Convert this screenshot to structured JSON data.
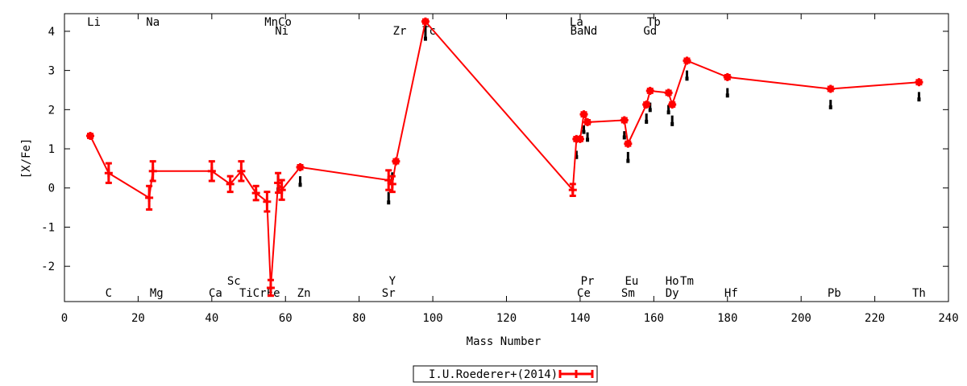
{
  "chart_data": {
    "type": "scatter",
    "xlabel": "Mass Number",
    "ylabel": "[X/Fe]",
    "xlim": [
      0,
      240
    ],
    "ylim": [
      -2.9,
      4.45
    ],
    "x_ticks": [
      0,
      20,
      40,
      60,
      80,
      100,
      120,
      140,
      160,
      180,
      200,
      220,
      240
    ],
    "y_ticks": [
      -2,
      -1,
      0,
      1,
      2,
      3,
      4
    ],
    "grid": false,
    "legend_position": "bottom-center",
    "colors": {
      "series": "#ff0000",
      "limits": "#000000"
    },
    "series": [
      {
        "name": "I.U.Roederer+(2014)",
        "points": [
          {
            "x": 7,
            "y": 1.33,
            "err": 0.05
          },
          {
            "x": 12,
            "y": 0.38,
            "err": 0.25
          },
          {
            "x": 23,
            "y": -0.25,
            "err": 0.3
          },
          {
            "x": 24,
            "y": 0.43,
            "err": 0.25
          },
          {
            "x": 40,
            "y": 0.43,
            "err": 0.25
          },
          {
            "x": 45,
            "y": 0.1,
            "err": 0.2
          },
          {
            "x": 48,
            "y": 0.43,
            "err": 0.25
          },
          {
            "x": 52,
            "y": -0.13,
            "err": 0.18
          },
          {
            "x": 55,
            "y": -0.35,
            "err": 0.25
          },
          {
            "x": 56,
            "y": -2.55,
            "err": 0.2
          },
          {
            "x": 58,
            "y": 0.13,
            "err": 0.25
          },
          {
            "x": 59,
            "y": -0.05,
            "err": 0.25
          },
          {
            "x": 64,
            "y": 0.53,
            "err": 0.05
          },
          {
            "x": 88,
            "y": 0.2,
            "err": 0.25
          },
          {
            "x": 89,
            "y": 0.1,
            "err": 0.2
          },
          {
            "x": 90,
            "y": 0.68,
            "err": 0.05
          },
          {
            "x": 98,
            "y": 4.25,
            "err": 0.05
          },
          {
            "x": 138,
            "y": -0.05,
            "err": 0.15
          },
          {
            "x": 139,
            "y": 1.25,
            "err": 0.05
          },
          {
            "x": 140,
            "y": 1.25,
            "err": 0.05
          },
          {
            "x": 141,
            "y": 1.88,
            "err": 0.05
          },
          {
            "x": 142,
            "y": 1.68,
            "err": 0.05
          },
          {
            "x": 152,
            "y": 1.73,
            "err": 0.05
          },
          {
            "x": 153,
            "y": 1.13,
            "err": 0.05
          },
          {
            "x": 158,
            "y": 2.13,
            "err": 0.05
          },
          {
            "x": 159,
            "y": 2.48,
            "err": 0.05
          },
          {
            "x": 164,
            "y": 2.43,
            "err": 0.05
          },
          {
            "x": 165,
            "y": 2.13,
            "err": 0.05
          },
          {
            "x": 169,
            "y": 3.25,
            "err": 0.05
          },
          {
            "x": 180,
            "y": 2.83,
            "err": 0.05
          },
          {
            "x": 208,
            "y": 2.53,
            "err": 0.05
          },
          {
            "x": 232,
            "y": 2.7,
            "err": 0.05
          }
        ]
      }
    ],
    "upper_limit_markers": [
      {
        "x": 58,
        "y_top": 0.33,
        "y_bottom": -0.05
      },
      {
        "x": 64,
        "y_top": 0.3,
        "y_bottom": 0.07
      },
      {
        "x": 88,
        "y_top": -0.1,
        "y_bottom": -0.38
      },
      {
        "x": 89,
        "y_top": 0.4,
        "y_bottom": 0.25
      },
      {
        "x": 98,
        "y_top": 4.15,
        "y_bottom": 3.8
      },
      {
        "x": 139,
        "y_top": 0.95,
        "y_bottom": 0.78
      },
      {
        "x": 141,
        "y_top": 1.6,
        "y_bottom": 1.42
      },
      {
        "x": 142,
        "y_top": 1.42,
        "y_bottom": 1.22
      },
      {
        "x": 152,
        "y_top": 1.45,
        "y_bottom": 1.28
      },
      {
        "x": 153,
        "y_top": 0.92,
        "y_bottom": 0.68
      },
      {
        "x": 158,
        "y_top": 1.9,
        "y_bottom": 1.68
      },
      {
        "x": 159,
        "y_top": 2.18,
        "y_bottom": 1.98
      },
      {
        "x": 164,
        "y_top": 2.12,
        "y_bottom": 1.92
      },
      {
        "x": 165,
        "y_top": 1.85,
        "y_bottom": 1.62
      },
      {
        "x": 169,
        "y_top": 3.0,
        "y_bottom": 2.78
      },
      {
        "x": 180,
        "y_top": 2.55,
        "y_bottom": 2.35
      },
      {
        "x": 208,
        "y_top": 2.25,
        "y_bottom": 2.05
      },
      {
        "x": 232,
        "y_top": 2.45,
        "y_bottom": 2.25
      }
    ],
    "element_labels": {
      "top": [
        {
          "text": "Li",
          "x": 8,
          "row": 1
        },
        {
          "text": "Na",
          "x": 24,
          "row": 1
        },
        {
          "text": "MnCo",
          "x": 58,
          "row": 1
        },
        {
          "text": "Ni",
          "x": 59,
          "row": 2
        },
        {
          "text": "Zr",
          "x": 91,
          "row": 2
        },
        {
          "text": "Tc",
          "x": 99,
          "row": 2
        },
        {
          "text": "La",
          "x": 139,
          "row": 1
        },
        {
          "text": "BaNd",
          "x": 141,
          "row": 2
        },
        {
          "text": "Tb",
          "x": 160,
          "row": 1
        },
        {
          "text": "Gd",
          "x": 159,
          "row": 2
        }
      ],
      "bottom": [
        {
          "text": "Sc",
          "x": 46,
          "row": 1
        },
        {
          "text": "Y",
          "x": 89,
          "row": 1
        },
        {
          "text": "Pr",
          "x": 142,
          "row": 1
        },
        {
          "text": "Eu",
          "x": 154,
          "row": 1
        },
        {
          "text": "Ho",
          "x": 165,
          "row": 1
        },
        {
          "text": "Tm",
          "x": 169,
          "row": 1
        },
        {
          "text": "C",
          "x": 12,
          "row": 2
        },
        {
          "text": "Mg",
          "x": 25,
          "row": 2
        },
        {
          "text": "Ca",
          "x": 41,
          "row": 2
        },
        {
          "text": "TiCrFe",
          "x": 53,
          "row": 2
        },
        {
          "text": "Zn",
          "x": 65,
          "row": 2
        },
        {
          "text": "Sr",
          "x": 88,
          "row": 2
        },
        {
          "text": "Ce",
          "x": 141,
          "row": 2
        },
        {
          "text": "Sm",
          "x": 153,
          "row": 2
        },
        {
          "text": "Dy",
          "x": 165,
          "row": 2
        },
        {
          "text": "Hf",
          "x": 181,
          "row": 2
        },
        {
          "text": "Pb",
          "x": 209,
          "row": 2
        },
        {
          "text": "Th",
          "x": 232,
          "row": 2
        }
      ]
    }
  }
}
